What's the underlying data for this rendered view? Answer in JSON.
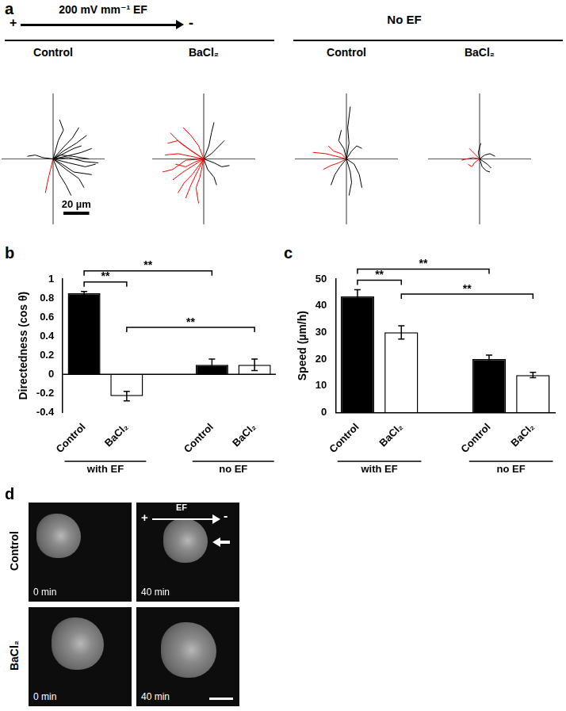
{
  "panel_a": {
    "label": "a",
    "ef_header": {
      "plus": "+",
      "text": "200 mV mm⁻¹ EF",
      "minus": "-"
    },
    "no_ef_header": "No EF"
  },
  "chart_data": [
    {
      "type": "line",
      "title": "Control",
      "xlim": [
        -40,
        40
      ],
      "ylim": [
        -50,
        50
      ],
      "tick_labels": false,
      "grid": false,
      "scale_bar": {
        "length": 20,
        "label": "20 µm"
      },
      "tracks": [
        {
          "color": "#000000",
          "points": [
            [
              0,
              0
            ],
            [
              10,
              2
            ],
            [
              22,
              5
            ],
            [
              30,
              8
            ]
          ]
        },
        {
          "color": "#000000",
          "points": [
            [
              0,
              0
            ],
            [
              12,
              -3
            ],
            [
              25,
              -6
            ],
            [
              33,
              -4
            ]
          ]
        },
        {
          "color": "#000000",
          "points": [
            [
              0,
              0
            ],
            [
              8,
              6
            ],
            [
              18,
              12
            ],
            [
              26,
              18
            ]
          ]
        },
        {
          "color": "#000000",
          "points": [
            [
              0,
              0
            ],
            [
              10,
              -8
            ],
            [
              20,
              -15
            ],
            [
              24,
              -22
            ]
          ]
        },
        {
          "color": "#000000",
          "points": [
            [
              0,
              0
            ],
            [
              6,
              3
            ],
            [
              15,
              2
            ],
            [
              28,
              0
            ]
          ]
        },
        {
          "color": "#000000",
          "points": [
            [
              0,
              0
            ],
            [
              9,
              10
            ],
            [
              15,
              16
            ],
            [
              20,
              24
            ]
          ]
        },
        {
          "color": "#000000",
          "points": [
            [
              0,
              0
            ],
            [
              12,
              1
            ],
            [
              24,
              -2
            ],
            [
              35,
              -3
            ]
          ]
        },
        {
          "color": "#000000",
          "points": [
            [
              0,
              0
            ],
            [
              7,
              -4
            ],
            [
              16,
              -10
            ],
            [
              30,
              -12
            ]
          ]
        },
        {
          "color": "#000000",
          "points": [
            [
              0,
              0
            ],
            [
              -8,
              1
            ],
            [
              -14,
              3
            ],
            [
              -20,
              2
            ]
          ]
        },
        {
          "color": "#000000",
          "points": [
            [
              0,
              0
            ],
            [
              5,
              -12
            ],
            [
              10,
              -20
            ],
            [
              14,
              -28
            ]
          ]
        },
        {
          "color": "#000000",
          "points": [
            [
              0,
              0
            ],
            [
              8,
              4
            ],
            [
              16,
              8
            ],
            [
              22,
              10
            ]
          ]
        },
        {
          "color": "#000000",
          "points": [
            [
              0,
              0
            ],
            [
              4,
              14
            ],
            [
              8,
              22
            ],
            [
              5,
              30
            ]
          ]
        },
        {
          "color": "#ff0000",
          "points": [
            [
              0,
              0
            ],
            [
              -2,
              -8
            ],
            [
              -4,
              -16
            ],
            [
              -6,
              -26
            ]
          ]
        }
      ]
    },
    {
      "type": "line",
      "title": "BaCl₂",
      "xlim": [
        -40,
        40
      ],
      "ylim": [
        -50,
        50
      ],
      "tick_labels": false,
      "grid": false,
      "tracks": [
        {
          "color": "#ff0000",
          "points": [
            [
              0,
              0
            ],
            [
              -8,
              5
            ],
            [
              -18,
              12
            ],
            [
              -26,
              20
            ]
          ]
        },
        {
          "color": "#ff0000",
          "points": [
            [
              0,
              0
            ],
            [
              -10,
              2
            ],
            [
              -20,
              4
            ],
            [
              -30,
              3
            ]
          ]
        },
        {
          "color": "#ff0000",
          "points": [
            [
              0,
              0
            ],
            [
              -8,
              -5
            ],
            [
              -16,
              -10
            ],
            [
              -24,
              -16
            ]
          ]
        },
        {
          "color": "#ff0000",
          "points": [
            [
              0,
              0
            ],
            [
              -5,
              -10
            ],
            [
              -10,
              -20
            ],
            [
              -14,
              -30
            ]
          ]
        },
        {
          "color": "#ff0000",
          "points": [
            [
              0,
              0
            ],
            [
              -12,
              8
            ],
            [
              -20,
              14
            ],
            [
              -28,
              12
            ]
          ]
        },
        {
          "color": "#ff0000",
          "points": [
            [
              0,
              0
            ],
            [
              -6,
              -2
            ],
            [
              -14,
              -6
            ],
            [
              -22,
              -4
            ]
          ]
        },
        {
          "color": "#ff0000",
          "points": [
            [
              0,
              0
            ],
            [
              -4,
              10
            ],
            [
              -10,
              18
            ],
            [
              -16,
              24
            ]
          ]
        },
        {
          "color": "#ff0000",
          "points": [
            [
              0,
              0
            ],
            [
              -9,
              -12
            ],
            [
              -15,
              -18
            ],
            [
              -20,
              -26
            ]
          ]
        },
        {
          "color": "#ff0000",
          "points": [
            [
              0,
              0
            ],
            [
              -14,
              -1
            ],
            [
              -24,
              -8
            ],
            [
              -32,
              -10
            ]
          ]
        },
        {
          "color": "#ff0000",
          "points": [
            [
              0,
              0
            ],
            [
              -3,
              -14
            ],
            [
              -6,
              -22
            ],
            [
              -4,
              -34
            ]
          ]
        },
        {
          "color": "#000000",
          "points": [
            [
              0,
              0
            ],
            [
              4,
              10
            ],
            [
              6,
              20
            ],
            [
              8,
              28
            ]
          ]
        },
        {
          "color": "#000000",
          "points": [
            [
              0,
              0
            ],
            [
              8,
              -3
            ],
            [
              14,
              -6
            ],
            [
              20,
              -5
            ]
          ]
        },
        {
          "color": "#000000",
          "points": [
            [
              0,
              0
            ],
            [
              6,
              4
            ],
            [
              12,
              10
            ],
            [
              16,
              14
            ]
          ]
        },
        {
          "color": "#000000",
          "points": [
            [
              0,
              0
            ],
            [
              3,
              -8
            ],
            [
              8,
              -14
            ],
            [
              10,
              -20
            ]
          ]
        }
      ]
    },
    {
      "type": "line",
      "title": "Control",
      "xlim": [
        -40,
        40
      ],
      "ylim": [
        -50,
        50
      ],
      "tick_labels": false,
      "grid": false,
      "tracks": [
        {
          "color": "#000000",
          "points": [
            [
              0,
              0
            ],
            [
              2,
              12
            ],
            [
              1,
              24
            ],
            [
              3,
              40
            ]
          ]
        },
        {
          "color": "#000000",
          "points": [
            [
              0,
              0
            ],
            [
              -5,
              -6
            ],
            [
              -9,
              -12
            ],
            [
              -12,
              -20
            ]
          ]
        },
        {
          "color": "#000000",
          "points": [
            [
              0,
              0
            ],
            [
              6,
              -4
            ],
            [
              10,
              -12
            ],
            [
              12,
              -22
            ]
          ]
        },
        {
          "color": "#000000",
          "points": [
            [
              0,
              0
            ],
            [
              4,
              6
            ],
            [
              8,
              10
            ],
            [
              12,
              8
            ]
          ]
        },
        {
          "color": "#000000",
          "points": [
            [
              0,
              0
            ],
            [
              -2,
              8
            ],
            [
              -6,
              14
            ],
            [
              -4,
              22
            ]
          ]
        },
        {
          "color": "#000000",
          "points": [
            [
              0,
              0
            ],
            [
              3,
              -10
            ],
            [
              4,
              -18
            ],
            [
              2,
              -28
            ]
          ]
        },
        {
          "color": "#ff0000",
          "points": [
            [
              0,
              0
            ],
            [
              -8,
              2
            ],
            [
              -16,
              4
            ],
            [
              -26,
              5
            ]
          ]
        },
        {
          "color": "#ff0000",
          "points": [
            [
              0,
              0
            ],
            [
              -6,
              -3
            ],
            [
              -12,
              -5
            ],
            [
              -18,
              -8
            ]
          ]
        },
        {
          "color": "#ff0000",
          "points": [
            [
              0,
              0
            ],
            [
              -4,
              4
            ],
            [
              -10,
              6
            ],
            [
              -14,
              10
            ]
          ]
        }
      ]
    },
    {
      "type": "line",
      "title": "BaCl₂",
      "xlim": [
        -40,
        40
      ],
      "ylim": [
        -50,
        50
      ],
      "tick_labels": false,
      "grid": false,
      "tracks": [
        {
          "color": "#000000",
          "points": [
            [
              0,
              0
            ],
            [
              4,
              3
            ],
            [
              8,
              4
            ],
            [
              12,
              2
            ]
          ]
        },
        {
          "color": "#000000",
          "points": [
            [
              0,
              0
            ],
            [
              2,
              -6
            ],
            [
              5,
              -9
            ],
            [
              8,
              -10
            ]
          ]
        },
        {
          "color": "#000000",
          "points": [
            [
              0,
              0
            ],
            [
              -1,
              5
            ],
            [
              0,
              9
            ],
            [
              1,
              12
            ]
          ]
        },
        {
          "color": "#000000",
          "points": [
            [
              0,
              0
            ],
            [
              3,
              -2
            ],
            [
              6,
              -4
            ],
            [
              9,
              -7
            ]
          ]
        },
        {
          "color": "#ff0000",
          "points": [
            [
              0,
              0
            ],
            [
              -5,
              1
            ],
            [
              -10,
              0
            ],
            [
              -14,
              -1
            ]
          ]
        },
        {
          "color": "#ff0000",
          "points": [
            [
              0,
              0
            ],
            [
              -4,
              -3
            ],
            [
              -6,
              -6
            ],
            [
              -9,
              -4
            ]
          ]
        },
        {
          "color": "#ff0000",
          "points": [
            [
              0,
              0
            ],
            [
              -3,
              3
            ],
            [
              -6,
              6
            ],
            [
              -8,
              8
            ]
          ]
        }
      ]
    },
    {
      "type": "bar",
      "panel_label": "b",
      "y_label": "Directedness (cos θ)",
      "categories": [
        "Control",
        "BaCl₂",
        null,
        "Control",
        "BaCl₂"
      ],
      "values": [
        0.85,
        -0.23,
        null,
        0.1,
        0.1
      ],
      "errors": [
        0.02,
        0.05,
        null,
        0.06,
        0.06
      ],
      "colors": [
        "#000000",
        "#ffffff",
        null,
        "#000000",
        "#ffffff"
      ],
      "ylim": [
        -0.4,
        1
      ],
      "yticks": [
        -0.4,
        -0.2,
        0,
        0.2,
        0.4,
        0.6,
        0.8,
        1
      ],
      "grid": false,
      "groups": [
        {
          "label": "with EF",
          "from": 0,
          "to": 1
        },
        {
          "label": "no EF",
          "from": 3,
          "to": 4
        }
      ],
      "annotations": [
        {
          "from": 0,
          "to": 1,
          "label": "**"
        },
        {
          "from": 0,
          "to": 3,
          "label": "**"
        },
        {
          "from": 1,
          "to": 4,
          "label": "**"
        }
      ]
    },
    {
      "type": "bar",
      "panel_label": "c",
      "y_label": "Speed (µm/h)",
      "categories": [
        "Control",
        "BaCl₂",
        null,
        "Control",
        "BaCl₂"
      ],
      "values": [
        43.5,
        30,
        null,
        20,
        14
      ],
      "errors": [
        2.5,
        2.5,
        null,
        1.5,
        1
      ],
      "colors": [
        "#000000",
        "#ffffff",
        null,
        "#000000",
        "#ffffff"
      ],
      "ylim": [
        0,
        50
      ],
      "yticks": [
        0,
        10,
        20,
        30,
        40,
        50
      ],
      "grid": false,
      "groups": [
        {
          "label": "with EF",
          "from": 0,
          "to": 1
        },
        {
          "label": "no EF",
          "from": 3,
          "to": 4
        }
      ],
      "annotations": [
        {
          "from": 0,
          "to": 1,
          "label": "**"
        },
        {
          "from": 0,
          "to": 3,
          "label": "**"
        },
        {
          "from": 1,
          "to": 4,
          "label": "**"
        }
      ]
    }
  ],
  "panel_d": {
    "label": "d",
    "rows": [
      {
        "label": "Control",
        "images": [
          {
            "time": "0 min"
          },
          {
            "time": "40 min",
            "ef": {
              "plus": "+",
              "label": "EF",
              "minus": "-"
            }
          }
        ]
      },
      {
        "label": "BaCl₂",
        "images": [
          {
            "time": "0 min"
          },
          {
            "time": "40 min"
          }
        ]
      }
    ]
  }
}
